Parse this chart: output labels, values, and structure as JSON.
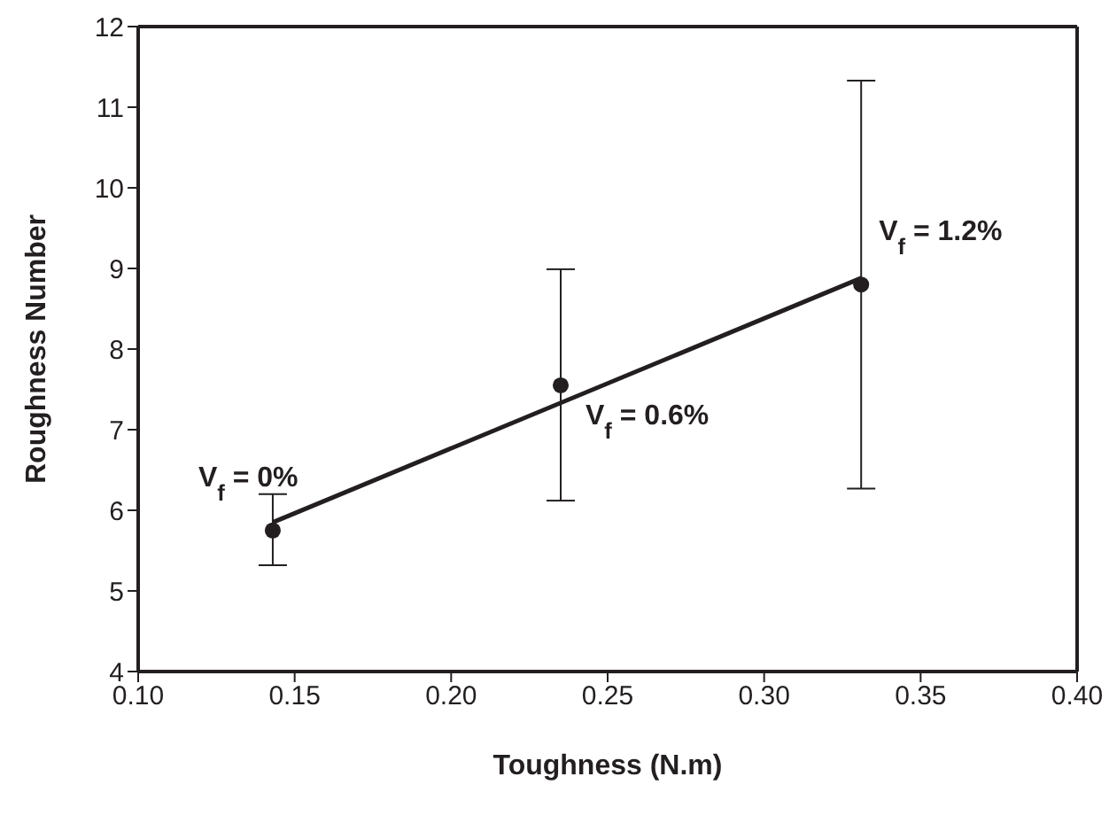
{
  "chart_data": {
    "type": "scatter",
    "xlabel": "Toughness (N.m)",
    "ylabel": "Roughness Number",
    "xlim": [
      0.1,
      0.4
    ],
    "xticks": [
      {
        "value": 0.1,
        "label": "0.10"
      },
      {
        "value": 0.15,
        "label": "0.15"
      },
      {
        "value": 0.2,
        "label": "0.20"
      },
      {
        "value": 0.25,
        "label": "0.25"
      },
      {
        "value": 0.3,
        "label": "0.30"
      },
      {
        "value": 0.35,
        "label": "0.35"
      },
      {
        "value": 0.4,
        "label": "0.40"
      }
    ],
    "ylim": [
      4,
      12
    ],
    "yticks": [
      4,
      5,
      6,
      7,
      8,
      9,
      10,
      11,
      12
    ],
    "grid": false,
    "legend": false,
    "series": [
      {
        "color": "#231f20",
        "marker": "circle",
        "x": [
          0.143,
          0.235,
          0.331
        ],
        "values": [
          5.75,
          7.55,
          8.8
        ],
        "errors": [
          [
            5.32,
            6.2
          ],
          [
            6.12,
            8.99
          ],
          [
            6.27,
            11.33
          ]
        ]
      },
      {
        "type": "line",
        "color": "#231f20",
        "marker": "none",
        "line_style": "solid",
        "x": [
          0.143,
          0.331
        ],
        "values": [
          5.85,
          8.88
        ]
      }
    ],
    "annotations": [
      {
        "text": "V$_{f}$ = 0%",
        "x": 0.143,
        "y": 5.75
      },
      {
        "text": "V$_{f}$ = 0.6%",
        "x": 0.235,
        "y": 7.55
      },
      {
        "text": "V$_{f}$ = 1.2%",
        "x": 0.331,
        "y": 8.8
      }
    ]
  }
}
